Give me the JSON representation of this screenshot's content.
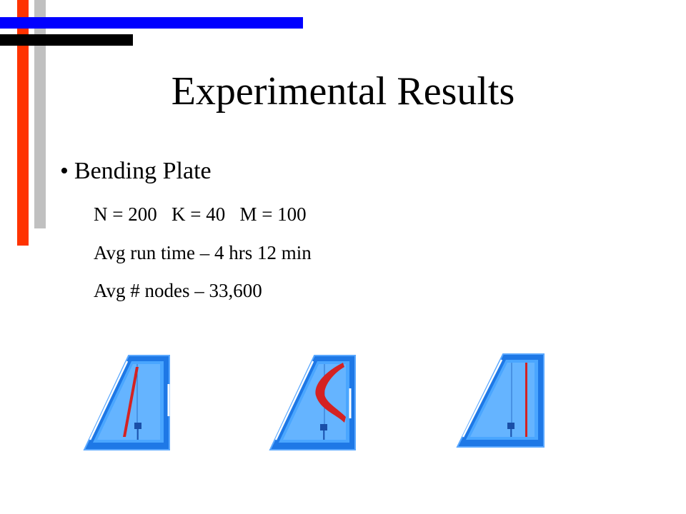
{
  "slide": {
    "title": "Experimental Results",
    "bullet": {
      "symbol": "•",
      "text": "Bending Plate"
    },
    "details": [
      "N = 200   K = 40   M = 100",
      "Avg run time – 4 hrs 12 min",
      "Avg # nodes – 33,600"
    ]
  },
  "decoration": {
    "colors": {
      "red": "#ff3300",
      "gray": "#c0c0c0",
      "blue": "#0000ff",
      "black": "#000000"
    }
  },
  "images": [
    {
      "name": "bending-plate-render-straight",
      "plate_color": "#3399ff",
      "deformation_color": "#dd2222"
    },
    {
      "name": "bending-plate-render-curled",
      "plate_color": "#3399ff",
      "deformation_color": "#dd2222"
    },
    {
      "name": "bending-plate-render-edge",
      "plate_color": "#3399ff",
      "deformation_color": "#dd2222"
    }
  ]
}
